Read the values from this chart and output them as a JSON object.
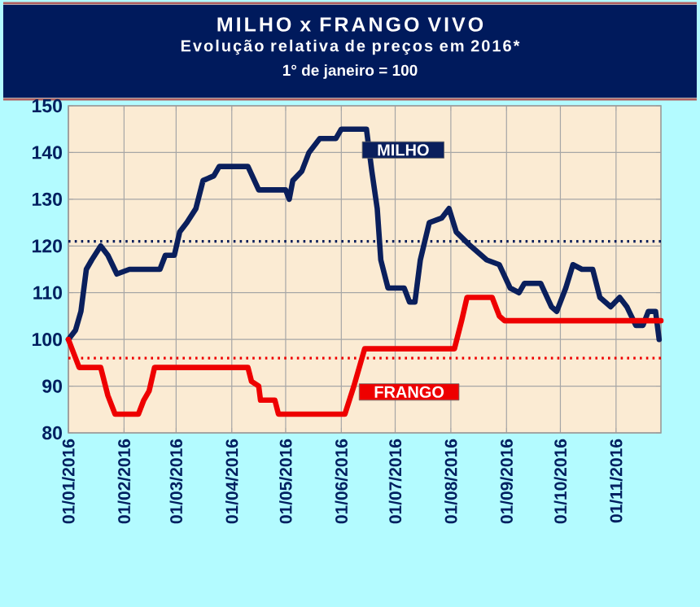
{
  "chart_data": {
    "type": "line",
    "title": "MILHO x FRANGO VIVO",
    "subtitle": "Evolução relativa de preços em 2016*",
    "annotations": [
      "1° de janeiro = 100"
    ],
    "xlim": [
      "2016-01-01",
      "2016-11-26"
    ],
    "xticks": [
      {
        "value": "2016-01-01",
        "label": "01/01/2016"
      },
      {
        "value": "2016-02-01",
        "label": "01/02/2016"
      },
      {
        "value": "2016-03-01",
        "label": "01/03/2016"
      },
      {
        "value": "2016-04-01",
        "label": "01/04/2016"
      },
      {
        "value": "2016-05-01",
        "label": "01/05/2016"
      },
      {
        "value": "2016-06-01",
        "label": "01/06/2016"
      },
      {
        "value": "2016-07-01",
        "label": "01/07/2016"
      },
      {
        "value": "2016-08-01",
        "label": "01/08/2016"
      },
      {
        "value": "2016-09-01",
        "label": "01/09/2016"
      },
      {
        "value": "2016-10-01",
        "label": "01/10/2016"
      },
      {
        "value": "2016-11-01",
        "label": "01/11/2016"
      }
    ],
    "ylim": [
      80,
      150
    ],
    "yticks": [
      80,
      90,
      100,
      110,
      120,
      130,
      140,
      150
    ],
    "grid": true,
    "series": [
      {
        "name": "MILHO",
        "color": "#0a1f5c",
        "x": [
          "2016-01-01",
          "2016-01-05",
          "2016-01-08",
          "2016-01-11",
          "2016-01-14",
          "2016-01-19",
          "2016-01-23",
          "2016-01-28",
          "2016-02-04",
          "2016-02-21",
          "2016-02-24",
          "2016-02-29",
          "2016-03-03",
          "2016-03-07",
          "2016-03-12",
          "2016-03-16",
          "2016-03-22",
          "2016-03-25",
          "2016-04-10",
          "2016-04-16",
          "2016-05-01",
          "2016-05-03",
          "2016-05-05",
          "2016-05-10",
          "2016-05-14",
          "2016-05-20",
          "2016-05-29",
          "2016-06-01",
          "2016-06-15",
          "2016-06-18",
          "2016-06-21",
          "2016-06-23",
          "2016-06-27",
          "2016-07-06",
          "2016-07-09",
          "2016-07-12",
          "2016-07-15",
          "2016-07-20",
          "2016-07-27",
          "2016-07-31",
          "2016-08-04",
          "2016-08-12",
          "2016-08-21",
          "2016-08-28",
          "2016-09-03",
          "2016-09-08",
          "2016-09-11",
          "2016-09-20",
          "2016-09-26",
          "2016-09-29",
          "2016-10-04",
          "2016-10-08",
          "2016-10-13",
          "2016-10-19",
          "2016-10-23",
          "2016-10-29",
          "2016-11-03",
          "2016-11-07",
          "2016-11-12",
          "2016-11-16",
          "2016-11-19",
          "2016-11-23",
          "2016-11-25"
        ],
        "values": [
          100,
          102,
          106,
          115,
          117,
          120,
          118,
          114,
          115,
          115,
          118,
          118,
          123,
          125,
          128,
          134,
          135,
          137,
          137,
          132,
          132,
          130,
          134,
          136,
          140,
          143,
          143,
          145,
          145,
          136,
          128,
          117,
          111,
          111,
          108,
          108,
          117,
          125,
          126,
          128,
          123,
          120,
          117,
          116,
          111,
          110,
          112,
          112,
          107,
          106,
          111,
          116,
          115,
          115,
          109,
          107,
          109,
          107,
          103,
          103,
          106,
          106,
          100
        ]
      },
      {
        "name": "FRANGO",
        "color": "#ee0000",
        "x": [
          "2016-01-01",
          "2016-01-04",
          "2016-01-07",
          "2016-01-19",
          "2016-01-23",
          "2016-01-27",
          "2016-02-09",
          "2016-02-12",
          "2016-02-15",
          "2016-02-18",
          "2016-04-10",
          "2016-04-12",
          "2016-04-16",
          "2016-04-17",
          "2016-04-25",
          "2016-04-27",
          "2016-06-03",
          "2016-06-08",
          "2016-06-14",
          "2016-08-03",
          "2016-08-07",
          "2016-08-10",
          "2016-08-24",
          "2016-08-28",
          "2016-08-31",
          "2016-11-26"
        ],
        "values": [
          100,
          97,
          94,
          94,
          88,
          84,
          84,
          87,
          89,
          94,
          94,
          91,
          90,
          87,
          87,
          84,
          84,
          90,
          98,
          98,
          104,
          109,
          109,
          105,
          104,
          104
        ]
      }
    ],
    "ref_lines": [
      {
        "axis": "y",
        "value": 121,
        "color": "#0a1f5c",
        "line_style": "dotted"
      },
      {
        "axis": "y",
        "value": 96,
        "color": "#ee0000",
        "line_style": "dotted"
      }
    ]
  }
}
